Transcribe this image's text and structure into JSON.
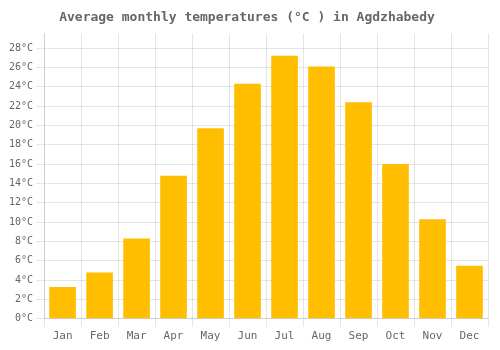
{
  "chart_data": {
    "type": "bar",
    "title": "Average monthly temperatures (°C ) in Agdzhabedy",
    "categories": [
      "Jan",
      "Feb",
      "Mar",
      "Apr",
      "May",
      "Jun",
      "Jul",
      "Aug",
      "Sep",
      "Oct",
      "Nov",
      "Dec"
    ],
    "values": [
      3.3,
      4.8,
      8.3,
      14.8,
      19.7,
      24.3,
      27.2,
      26.1,
      22.4,
      16.0,
      10.3,
      5.5
    ],
    "color": "#FFBE00",
    "ylim": [
      0,
      29.5
    ],
    "yticks": [
      {
        "value": 0,
        "label": "0°C"
      },
      {
        "value": 2,
        "label": "2°C"
      },
      {
        "value": 4,
        "label": "4°C"
      },
      {
        "value": 6,
        "label": "6°C"
      },
      {
        "value": 8,
        "label": "8°C"
      },
      {
        "value": 10,
        "label": "10°C"
      },
      {
        "value": 12,
        "label": "12°C"
      },
      {
        "value": 14,
        "label": "14°C"
      },
      {
        "value": 16,
        "label": "16°C"
      },
      {
        "value": 18,
        "label": "18°C"
      },
      {
        "value": 20,
        "label": "20°C"
      },
      {
        "value": 22,
        "label": "22°C"
      },
      {
        "value": 24,
        "label": "24°C"
      },
      {
        "value": 26,
        "label": "26°C"
      },
      {
        "value": 28,
        "label": "28°C"
      }
    ],
    "grid": true
  }
}
